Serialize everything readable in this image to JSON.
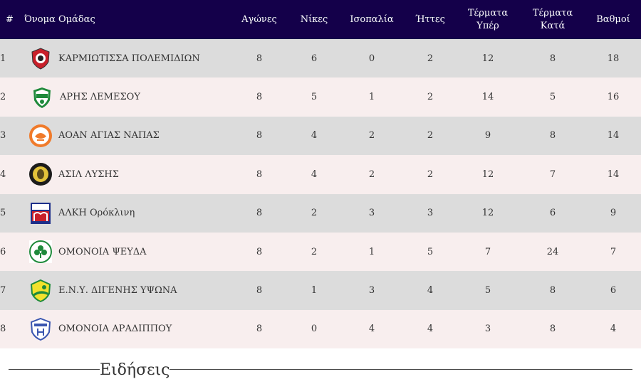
{
  "standings": {
    "headers": {
      "num": "#",
      "team": "Όνομα Ομάδας",
      "played": "Αγώνες",
      "wins": "Νίκες",
      "draws": "Ισοπαλία",
      "losses": "Ήττες",
      "goals_for": "Τέρματα Υπέρ",
      "goals_against": "Τέρματα Κατά",
      "points": "Βαθμοί"
    },
    "rows": [
      {
        "pos": "1",
        "team": "ΚΑΡΜΙΩΤΙΣΣΑ ΠΟΛΕΜΙΔΙΩΝ",
        "played": "8",
        "wins": "6",
        "draws": "0",
        "losses": "2",
        "gf": "12",
        "ga": "8",
        "pts": "18",
        "logo": "karmiotissa-logo"
      },
      {
        "pos": "2",
        "team": "ΑΡΗΣ ΛΕΜΕΣΟΥ",
        "played": "8",
        "wins": "5",
        "draws": "1",
        "losses": "2",
        "gf": "14",
        "ga": "5",
        "pts": "16",
        "logo": "aris-limassol-logo"
      },
      {
        "pos": "3",
        "team": "ΑΟΑΝ ΑΓΙΑΣ ΝΑΠΑΣ",
        "played": "8",
        "wins": "4",
        "draws": "2",
        "losses": "2",
        "gf": "9",
        "ga": "8",
        "pts": "14",
        "logo": "aoan-agia-napa-logo"
      },
      {
        "pos": "4",
        "team": "ΑΣΙΛ ΛΥΣΗΣ",
        "played": "8",
        "wins": "4",
        "draws": "2",
        "losses": "2",
        "gf": "12",
        "ga": "7",
        "pts": "14",
        "logo": "asil-lysis-logo"
      },
      {
        "pos": "5",
        "team": "ΑΛΚΗ Ορόκλινη",
        "played": "8",
        "wins": "2",
        "draws": "3",
        "losses": "3",
        "gf": "12",
        "ga": "6",
        "pts": "9",
        "logo": "alki-oroklini-logo"
      },
      {
        "pos": "6",
        "team": "ΟΜΟΝΟΙΑ ΨΕΥΔΑ",
        "played": "8",
        "wins": "2",
        "draws": "1",
        "losses": "5",
        "gf": "7",
        "ga": "24",
        "pts": "7",
        "logo": "omonoia-psevda-logo"
      },
      {
        "pos": "7",
        "team": "Ε.Ν.Υ. ΔΙΓΕΝΗΣ ΥΨΩΝΑ",
        "played": "8",
        "wins": "1",
        "draws": "3",
        "losses": "4",
        "gf": "5",
        "ga": "8",
        "pts": "6",
        "logo": "digenis-ypsona-logo"
      },
      {
        "pos": "8",
        "team": "ΟΜΟΝΟΙΑ ΑΡΑΔΙΠΠΟΥ",
        "played": "8",
        "wins": "0",
        "draws": "4",
        "losses": "4",
        "gf": "3",
        "ga": "8",
        "pts": "4",
        "logo": "omonoia-aradippou-logo"
      }
    ]
  },
  "news": {
    "title": "Ειδήσεις"
  },
  "colors": {
    "header_bg": "#14004a",
    "row_odd": "#dcdcdc",
    "row_even": "#f8eeee"
  }
}
